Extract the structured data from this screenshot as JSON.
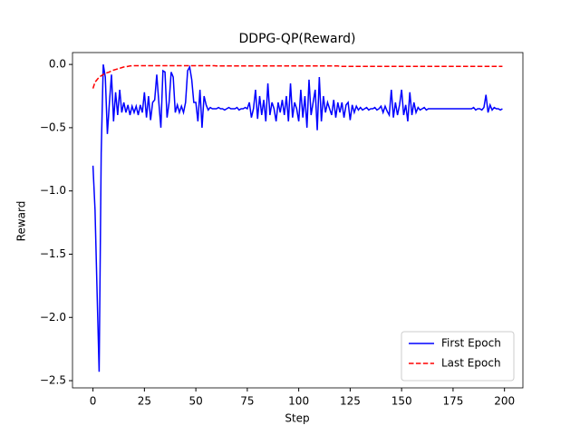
{
  "chart_data": {
    "type": "line",
    "title": "DDPG-QP(Reward)",
    "xlabel": "Step",
    "ylabel": "Reward",
    "xlim": [
      -9.95,
      208.95
    ],
    "ylim": [
      -2.557,
      0.094
    ],
    "xticks": [
      0,
      25,
      50,
      75,
      100,
      125,
      150,
      175,
      200
    ],
    "yticks": [
      {
        "value": 0,
        "label": "0.0"
      },
      {
        "value": -0.5,
        "label": "−0.5"
      },
      {
        "value": -1,
        "label": "−1.0"
      },
      {
        "value": -1.5,
        "label": "−1.5"
      },
      {
        "value": -2,
        "label": "−2.0"
      },
      {
        "value": -2.5,
        "label": "−2.5"
      }
    ],
    "legend": "lower right",
    "x": [
      0,
      1,
      2,
      3,
      4,
      5,
      6,
      7,
      8,
      9,
      10,
      11,
      12,
      13,
      14,
      15,
      16,
      17,
      18,
      19,
      20,
      21,
      22,
      23,
      24,
      25,
      26,
      27,
      28,
      29,
      30,
      31,
      32,
      33,
      34,
      35,
      36,
      37,
      38,
      39,
      40,
      41,
      42,
      43,
      44,
      45,
      46,
      47,
      48,
      49,
      50,
      51,
      52,
      53,
      54,
      55,
      56,
      57,
      58,
      59,
      60,
      61,
      62,
      63,
      64,
      65,
      66,
      67,
      68,
      69,
      70,
      71,
      72,
      73,
      74,
      75,
      76,
      77,
      78,
      79,
      80,
      81,
      82,
      83,
      84,
      85,
      86,
      87,
      88,
      89,
      90,
      91,
      92,
      93,
      94,
      95,
      96,
      97,
      98,
      99,
      100,
      101,
      102,
      103,
      104,
      105,
      106,
      107,
      108,
      109,
      110,
      111,
      112,
      113,
      114,
      115,
      116,
      117,
      118,
      119,
      120,
      121,
      122,
      123,
      124,
      125,
      126,
      127,
      128,
      129,
      130,
      131,
      132,
      133,
      134,
      135,
      136,
      137,
      138,
      139,
      140,
      141,
      142,
      143,
      144,
      145,
      146,
      147,
      148,
      149,
      150,
      151,
      152,
      153,
      154,
      155,
      156,
      157,
      158,
      159,
      160,
      161,
      162,
      163,
      164,
      165,
      166,
      167,
      168,
      169,
      170,
      171,
      172,
      173,
      174,
      175,
      176,
      177,
      178,
      179,
      180,
      181,
      182,
      183,
      184,
      185,
      186,
      187,
      188,
      189,
      190,
      191,
      192,
      193,
      194,
      195,
      196,
      197,
      198,
      199
    ],
    "series": [
      {
        "name": "First Epoch",
        "color": "#0000ff",
        "linestyle": "solid",
        "values": [
          -0.8,
          -1.15,
          -1.8,
          -2.43,
          -0.7,
          0.0,
          -0.1,
          -0.55,
          -0.3,
          -0.08,
          -0.45,
          -0.22,
          -0.4,
          -0.2,
          -0.38,
          -0.3,
          -0.38,
          -0.32,
          -0.4,
          -0.33,
          -0.38,
          -0.33,
          -0.4,
          -0.32,
          -0.38,
          -0.22,
          -0.42,
          -0.25,
          -0.44,
          -0.3,
          -0.28,
          -0.08,
          -0.3,
          -0.5,
          -0.05,
          -0.06,
          -0.42,
          -0.3,
          -0.06,
          -0.1,
          -0.38,
          -0.32,
          -0.38,
          -0.33,
          -0.38,
          -0.3,
          -0.05,
          -0.02,
          -0.12,
          -0.3,
          -0.3,
          -0.45,
          -0.2,
          -0.5,
          -0.25,
          -0.32,
          -0.36,
          -0.34,
          -0.35,
          -0.35,
          -0.35,
          -0.34,
          -0.35,
          -0.35,
          -0.36,
          -0.35,
          -0.34,
          -0.35,
          -0.35,
          -0.35,
          -0.34,
          -0.36,
          -0.35,
          -0.35,
          -0.34,
          -0.35,
          -0.3,
          -0.42,
          -0.35,
          -0.2,
          -0.43,
          -0.25,
          -0.4,
          -0.28,
          -0.45,
          -0.15,
          -0.4,
          -0.3,
          -0.35,
          -0.45,
          -0.3,
          -0.38,
          -0.28,
          -0.4,
          -0.25,
          -0.45,
          -0.15,
          -0.42,
          -0.3,
          -0.35,
          -0.45,
          -0.2,
          -0.42,
          -0.25,
          -0.5,
          -0.12,
          -0.4,
          -0.3,
          -0.2,
          -0.52,
          -0.1,
          -0.45,
          -0.25,
          -0.38,
          -0.3,
          -0.35,
          -0.4,
          -0.28,
          -0.42,
          -0.3,
          -0.38,
          -0.3,
          -0.42,
          -0.32,
          -0.3,
          -0.44,
          -0.32,
          -0.38,
          -0.33,
          -0.36,
          -0.34,
          -0.36,
          -0.35,
          -0.34,
          -0.36,
          -0.35,
          -0.35,
          -0.34,
          -0.36,
          -0.35,
          -0.33,
          -0.38,
          -0.33,
          -0.37,
          -0.4,
          -0.2,
          -0.42,
          -0.3,
          -0.4,
          -0.32,
          -0.2,
          -0.4,
          -0.32,
          -0.45,
          -0.22,
          -0.4,
          -0.3,
          -0.38,
          -0.34,
          -0.36,
          -0.35,
          -0.34,
          -0.36,
          -0.35,
          -0.35,
          -0.35,
          -0.35,
          -0.35,
          -0.35,
          -0.35,
          -0.35,
          -0.35,
          -0.35,
          -0.35,
          -0.35,
          -0.35,
          -0.35,
          -0.35,
          -0.35,
          -0.35,
          -0.35,
          -0.35,
          -0.35,
          -0.35,
          -0.35,
          -0.34,
          -0.36,
          -0.35,
          -0.35,
          -0.36,
          -0.34,
          -0.24,
          -0.38,
          -0.32,
          -0.36,
          -0.34,
          -0.35,
          -0.35,
          -0.36,
          -0.35
        ]
      },
      {
        "name": "Last Epoch",
        "color": "#ff0000",
        "linestyle": "dashed",
        "values": [
          -0.19,
          -0.14,
          -0.12,
          -0.1,
          -0.09,
          -0.08,
          -0.07,
          -0.065,
          -0.06,
          -0.05,
          -0.045,
          -0.04,
          -0.035,
          -0.03,
          -0.025,
          -0.02,
          -0.018,
          -0.015,
          -0.012,
          -0.01,
          -0.01,
          -0.01,
          -0.01,
          -0.01,
          -0.01,
          -0.01,
          -0.01,
          -0.01,
          -0.01,
          -0.01,
          -0.01,
          -0.01,
          -0.01,
          -0.01,
          -0.01,
          -0.01,
          -0.01,
          -0.01,
          -0.01,
          -0.01,
          -0.01,
          -0.01,
          -0.01,
          -0.01,
          -0.01,
          -0.01,
          -0.01,
          -0.01,
          -0.01,
          -0.01,
          -0.01,
          -0.01,
          -0.01,
          -0.01,
          -0.01,
          -0.01,
          -0.01,
          -0.01,
          -0.01,
          -0.01,
          -0.012,
          -0.012,
          -0.012,
          -0.012,
          -0.012,
          -0.012,
          -0.012,
          -0.012,
          -0.012,
          -0.012,
          -0.012,
          -0.012,
          -0.012,
          -0.012,
          -0.012,
          -0.012,
          -0.012,
          -0.012,
          -0.012,
          -0.012,
          -0.012,
          -0.012,
          -0.012,
          -0.012,
          -0.012,
          -0.012,
          -0.012,
          -0.012,
          -0.012,
          -0.012,
          -0.012,
          -0.012,
          -0.012,
          -0.012,
          -0.012,
          -0.012,
          -0.012,
          -0.012,
          -0.012,
          -0.012,
          -0.012,
          -0.012,
          -0.012,
          -0.012,
          -0.012,
          -0.012,
          -0.012,
          -0.012,
          -0.012,
          -0.012,
          -0.012,
          -0.012,
          -0.012,
          -0.012,
          -0.012,
          -0.012,
          -0.012,
          -0.012,
          -0.012,
          -0.012,
          -0.015,
          -0.015,
          -0.015,
          -0.015,
          -0.015,
          -0.015,
          -0.015,
          -0.015,
          -0.015,
          -0.015,
          -0.015,
          -0.015,
          -0.015,
          -0.015,
          -0.015,
          -0.015,
          -0.015,
          -0.015,
          -0.015,
          -0.015,
          -0.015,
          -0.015,
          -0.015,
          -0.015,
          -0.015,
          -0.015,
          -0.015,
          -0.015,
          -0.015,
          -0.015,
          -0.015,
          -0.015,
          -0.015,
          -0.015,
          -0.015,
          -0.015,
          -0.015,
          -0.015,
          -0.015,
          -0.015,
          -0.015,
          -0.015,
          -0.015,
          -0.015,
          -0.015,
          -0.015,
          -0.015,
          -0.015,
          -0.015,
          -0.015,
          -0.015,
          -0.015,
          -0.015,
          -0.015,
          -0.015,
          -0.015,
          -0.015,
          -0.015,
          -0.015,
          -0.015,
          -0.015,
          -0.015,
          -0.015,
          -0.015,
          -0.015,
          -0.015,
          -0.015,
          -0.015,
          -0.015,
          -0.015,
          -0.015,
          -0.015,
          -0.015,
          -0.015,
          -0.015,
          -0.015,
          -0.015,
          -0.015,
          -0.015,
          -0.015
        ]
      }
    ]
  }
}
